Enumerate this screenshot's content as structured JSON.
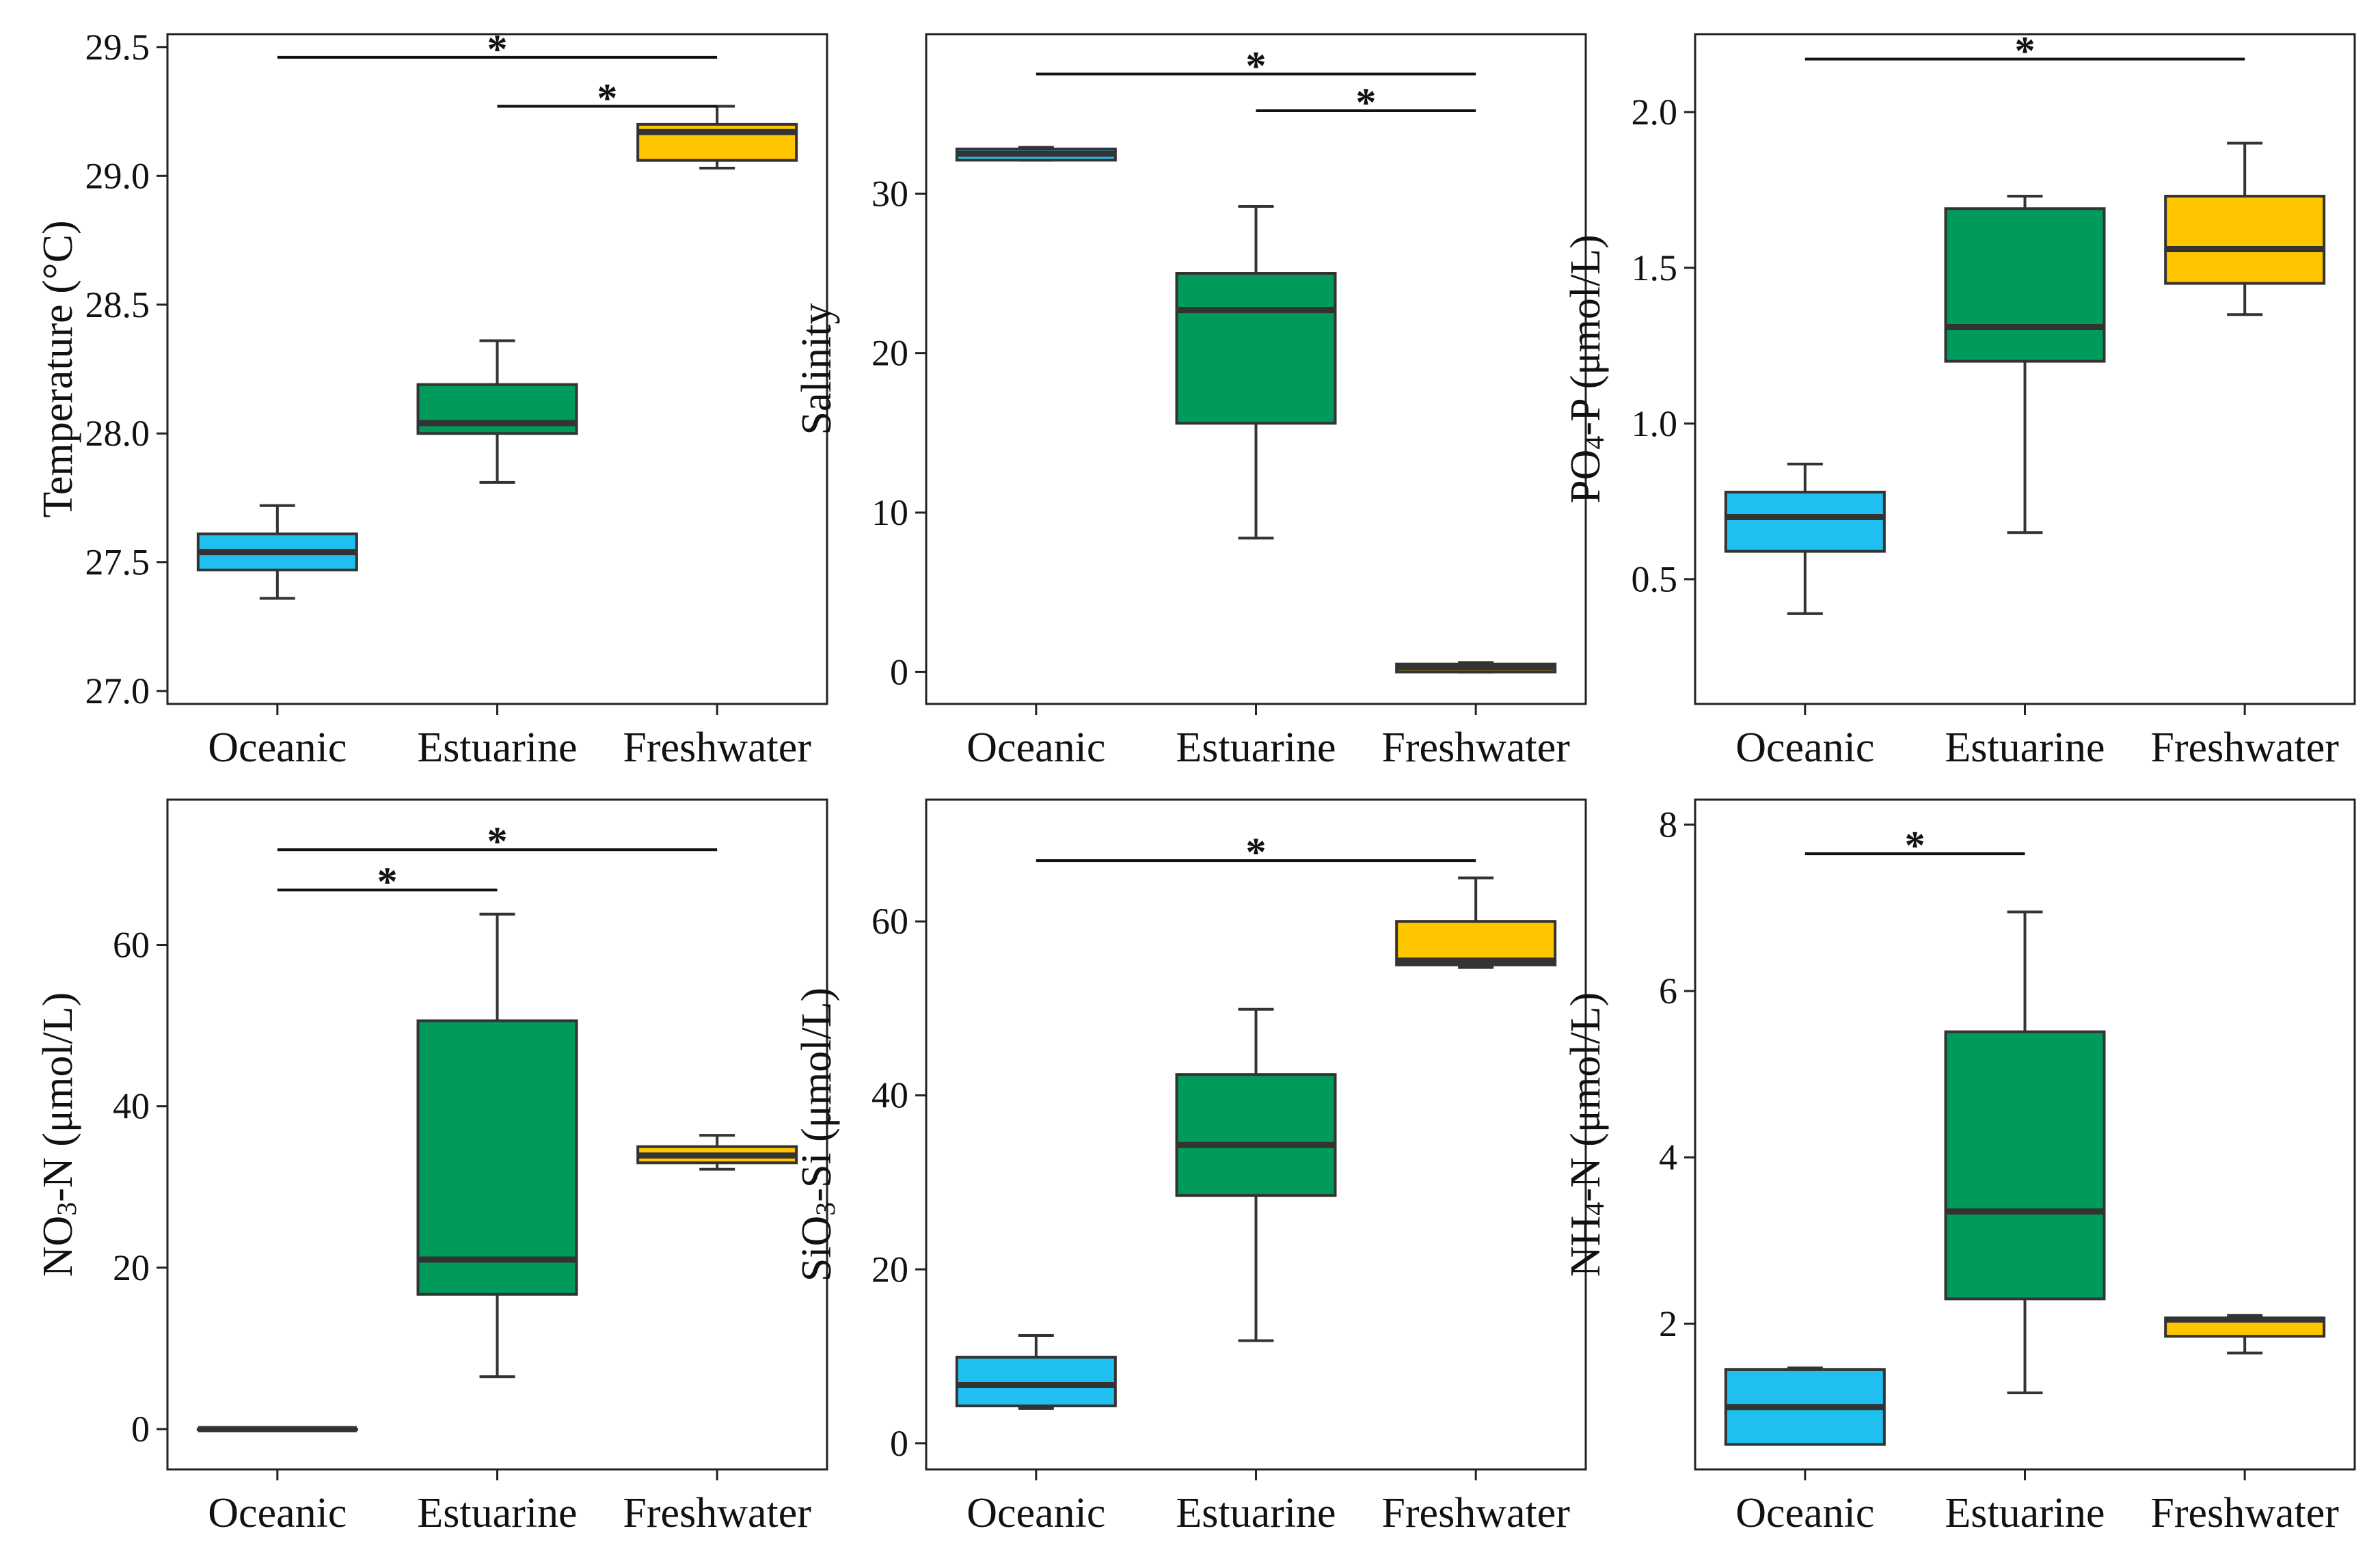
{
  "chart_data": [
    {
      "type": "box",
      "ylabel": "Temperature (°C)",
      "categories": [
        "Oceanic",
        "Estuarine",
        "Freshwater"
      ],
      "ylim": [
        26.95,
        29.55
      ],
      "yticks": [
        27.0,
        27.5,
        28.0,
        28.5,
        29.0,
        29.5
      ],
      "tick_labels": [
        "27.0",
        "27.5",
        "28.0",
        "28.5",
        "29.0",
        "29.5"
      ],
      "boxes": [
        {
          "name": "Oceanic",
          "whisker_low": 27.36,
          "q1": 27.47,
          "median": 27.54,
          "q3": 27.61,
          "whisker_high": 27.72
        },
        {
          "name": "Estuarine",
          "whisker_low": 27.81,
          "q1": 28.0,
          "median": 28.04,
          "q3": 28.19,
          "whisker_high": 28.36
        },
        {
          "name": "Freshwater",
          "whisker_low": 29.03,
          "q1": 29.06,
          "median": 29.17,
          "q3": 29.2,
          "whisker_high": 29.27
        }
      ],
      "significance": [
        {
          "from": "Oceanic",
          "to": "Freshwater",
          "y": 29.46,
          "label": "*"
        },
        {
          "from": "Estuarine",
          "to": "Freshwater",
          "y": 29.27,
          "label": "*"
        }
      ]
    },
    {
      "type": "box",
      "ylabel": "Salinity",
      "categories": [
        "Oceanic",
        "Estuarine",
        "Freshwater"
      ],
      "ylim": [
        -2,
        40
      ],
      "yticks": [
        0,
        10,
        20,
        30
      ],
      "tick_labels": [
        "0",
        "10",
        "20",
        "30"
      ],
      "boxes": [
        {
          "name": "Oceanic",
          "whisker_low": 32.1,
          "q1": 32.1,
          "median": 32.5,
          "q3": 32.8,
          "whisker_high": 32.9
        },
        {
          "name": "Estuarine",
          "whisker_low": 8.4,
          "q1": 15.6,
          "median": 22.7,
          "q3": 25.0,
          "whisker_high": 29.2
        },
        {
          "name": "Freshwater",
          "whisker_low": 0.0,
          "q1": 0.0,
          "median": 0.3,
          "q3": 0.5,
          "whisker_high": 0.6
        }
      ],
      "significance": [
        {
          "from": "Oceanic",
          "to": "Freshwater",
          "y": 37.5,
          "label": "*"
        },
        {
          "from": "Estuarine",
          "to": "Freshwater",
          "y": 35.2,
          "label": "*"
        }
      ]
    },
    {
      "type": "box",
      "ylabel": "PO4-P (μmol/L)",
      "ylabel_prefix": "PO",
      "ylabel_sub": "4",
      "ylabel_suffix": "-P (μmol/L)",
      "categories": [
        "Oceanic",
        "Estuarine",
        "Freshwater"
      ],
      "ylim": [
        0.1,
        2.25
      ],
      "yticks": [
        0.5,
        1.0,
        1.5,
        2.0
      ],
      "tick_labels": [
        "0.5",
        "1.0",
        "1.5",
        "2.0"
      ],
      "boxes": [
        {
          "name": "Oceanic",
          "whisker_low": 0.39,
          "q1": 0.59,
          "median": 0.7,
          "q3": 0.78,
          "whisker_high": 0.87
        },
        {
          "name": "Estuarine",
          "whisker_low": 0.65,
          "q1": 1.2,
          "median": 1.31,
          "q3": 1.69,
          "whisker_high": 1.73
        },
        {
          "name": "Freshwater",
          "whisker_low": 1.35,
          "q1": 1.45,
          "median": 1.56,
          "q3": 1.73,
          "whisker_high": 1.9
        }
      ],
      "significance": [
        {
          "from": "Oceanic",
          "to": "Freshwater",
          "y": 2.17,
          "label": "*"
        }
      ]
    },
    {
      "type": "box",
      "ylabel": "NO3-N (μmol/L)",
      "ylabel_prefix": "NO",
      "ylabel_sub": "3",
      "ylabel_suffix": "-N (μmol/L)",
      "categories": [
        "Oceanic",
        "Estuarine",
        "Freshwater"
      ],
      "ylim": [
        -5,
        78
      ],
      "yticks": [
        0,
        20,
        40,
        60
      ],
      "tick_labels": [
        "0",
        "20",
        "40",
        "60"
      ],
      "boxes": [
        {
          "name": "Oceanic",
          "whisker_low": 0.0,
          "q1": 0.0,
          "median": 0.0,
          "q3": 0.0,
          "whisker_high": 0.0
        },
        {
          "name": "Estuarine",
          "whisker_low": 6.5,
          "q1": 16.7,
          "median": 21.0,
          "q3": 50.6,
          "whisker_high": 63.8
        },
        {
          "name": "Freshwater",
          "whisker_low": 32.2,
          "q1": 33.0,
          "median": 33.9,
          "q3": 35.0,
          "whisker_high": 36.4
        }
      ],
      "significance": [
        {
          "from": "Oceanic",
          "to": "Freshwater",
          "y": 71.8,
          "label": "*"
        },
        {
          "from": "Oceanic",
          "to": "Estuarine",
          "y": 66.8,
          "label": "*"
        }
      ]
    },
    {
      "type": "box",
      "ylabel": "SiO3-Si (μmol/L)",
      "ylabel_prefix": "SiO",
      "ylabel_sub": "3",
      "ylabel_suffix": "-Si (μmol/L)",
      "categories": [
        "Oceanic",
        "Estuarine",
        "Freshwater"
      ],
      "ylim": [
        -3,
        74
      ],
      "yticks": [
        0,
        20,
        40,
        60
      ],
      "tick_labels": [
        "0",
        "20",
        "40",
        "60"
      ],
      "boxes": [
        {
          "name": "Oceanic",
          "whisker_low": 4.0,
          "q1": 4.3,
          "median": 6.7,
          "q3": 9.9,
          "whisker_high": 12.4
        },
        {
          "name": "Estuarine",
          "whisker_low": 11.8,
          "q1": 28.5,
          "median": 34.3,
          "q3": 42.4,
          "whisker_high": 49.9
        },
        {
          "name": "Freshwater",
          "whisker_low": 54.7,
          "q1": 55.0,
          "median": 55.5,
          "q3": 60.0,
          "whisker_high": 65.0
        }
      ],
      "significance": [
        {
          "from": "Oceanic",
          "to": "Freshwater",
          "y": 67.0,
          "label": "*"
        }
      ]
    },
    {
      "type": "box",
      "ylabel": "NH4-N (μmol/L)",
      "ylabel_prefix": "NH",
      "ylabel_sub": "4",
      "ylabel_suffix": "-N (μmol/L)",
      "categories": [
        "Oceanic",
        "Estuarine",
        "Freshwater"
      ],
      "ylim": [
        0.25,
        8.3
      ],
      "yticks": [
        2,
        4,
        6,
        8
      ],
      "tick_labels": [
        "2",
        "4",
        "6",
        "8"
      ],
      "boxes": [
        {
          "name": "Oceanic",
          "whisker_low": 0.55,
          "q1": 0.55,
          "median": 1.0,
          "q3": 1.45,
          "whisker_high": 1.47
        },
        {
          "name": "Estuarine",
          "whisker_low": 1.17,
          "q1": 2.3,
          "median": 3.35,
          "q3": 5.51,
          "whisker_high": 6.95
        },
        {
          "name": "Freshwater",
          "whisker_low": 1.65,
          "q1": 1.85,
          "median": 2.05,
          "q3": 2.07,
          "whisker_high": 2.1
        }
      ],
      "significance": [
        {
          "from": "Oceanic",
          "to": "Estuarine",
          "y": 7.65,
          "label": "*"
        }
      ]
    }
  ],
  "colors": {
    "Oceanic": "#1FBFF0",
    "Estuarine": "#009A5B",
    "Freshwater": "#FFC600"
  }
}
